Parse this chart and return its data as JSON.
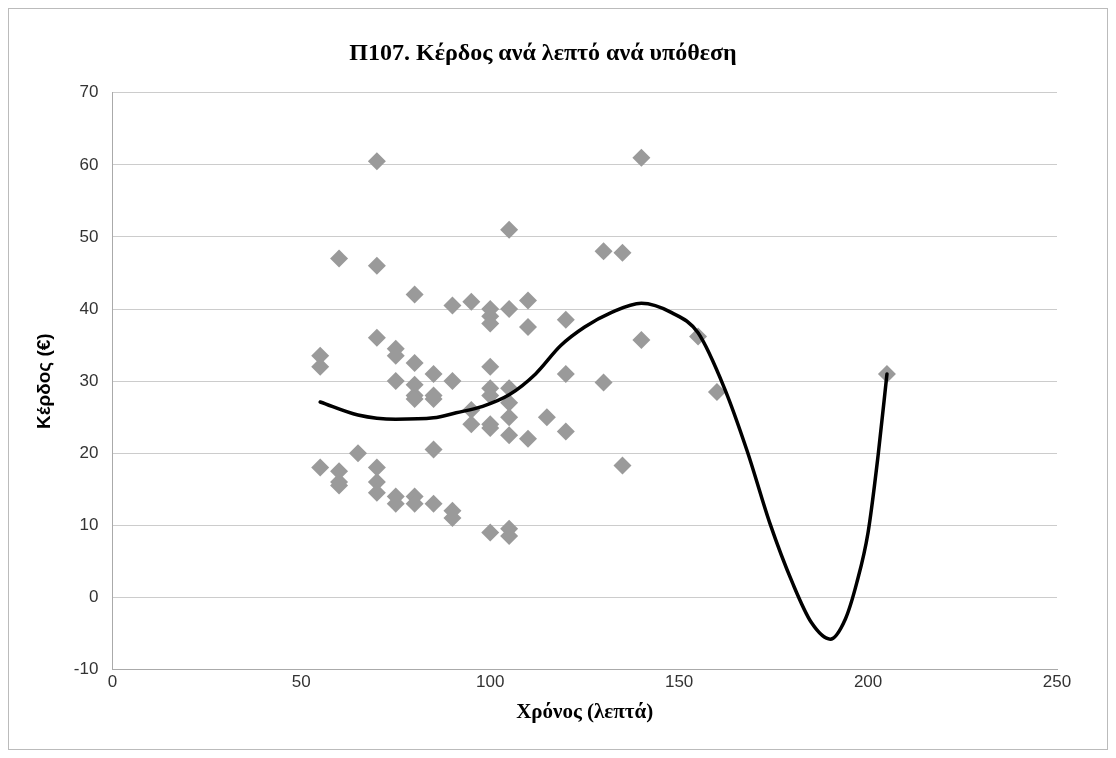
{
  "chart_data": {
    "type": "scatter",
    "title": "Π107. Κέρδος ανά λεπτό ανά υπόθεση",
    "xlabel": "Χρόνος (λεπτά)",
    "ylabel": "Κέρδος (€)",
    "xlim": [
      0,
      250
    ],
    "xticks": [
      0,
      50,
      100,
      150,
      200,
      250
    ],
    "ylim": [
      -10,
      70
    ],
    "yticks": [
      -10,
      0,
      10,
      20,
      30,
      40,
      50,
      60,
      70
    ],
    "grid": "y",
    "legend": false,
    "series": [
      {
        "marker": "diamond",
        "color": "#9a9a9a",
        "x": [
          55,
          55,
          55,
          60,
          60,
          60,
          60,
          65,
          70,
          70,
          70,
          70,
          70,
          70,
          75,
          75,
          75,
          75,
          75,
          80,
          80,
          80,
          80,
          80,
          80,
          80,
          85,
          85,
          85,
          85,
          85,
          90,
          90,
          90,
          90,
          95,
          95,
          95,
          100,
          100,
          100,
          100,
          100,
          100,
          100,
          100,
          100,
          105,
          105,
          105,
          105,
          105,
          105,
          105,
          105,
          110,
          110,
          110,
          115,
          120,
          120,
          120,
          130,
          130,
          135,
          135,
          140,
          140,
          155,
          160,
          205
        ],
        "values": [
          33.5,
          32,
          18,
          47,
          17.5,
          16,
          15.5,
          20,
          60.5,
          46,
          36,
          18,
          16,
          14.5,
          34.5,
          33.5,
          30,
          14,
          13,
          42,
          32.5,
          29.5,
          28,
          27.5,
          14,
          13,
          31,
          28,
          27.5,
          20.5,
          13,
          40.5,
          30,
          12,
          11,
          41,
          26,
          24,
          40,
          39,
          38,
          32,
          29,
          28,
          24,
          23.5,
          9,
          51,
          40,
          29,
          27,
          25,
          22.5,
          9.5,
          8.5,
          41.2,
          37.5,
          22,
          25,
          38.5,
          31,
          23,
          48,
          29.8,
          47.8,
          18.3,
          61,
          35.7,
          36.2,
          28.5,
          31
        ]
      },
      {
        "type": "line",
        "marker": "none",
        "line_style": "solid",
        "color": "#000000",
        "x": [
          55,
          65,
          75,
          85,
          91,
          98,
          105,
          112,
          118.6,
          125,
          132,
          140,
          148,
          155,
          162,
          168,
          174,
          180,
          185,
          190,
          194,
          197,
          200,
          202.7,
          205
        ],
        "values": [
          27.1,
          25.3,
          24.7,
          24.9,
          25.6,
          26.5,
          28.1,
          31,
          34.9,
          37.5,
          39.5,
          40.8,
          39.5,
          36.7,
          29,
          20.3,
          10.3,
          2,
          -3.5,
          -5.8,
          -3,
          2,
          9,
          19.9,
          31
        ]
      }
    ]
  }
}
